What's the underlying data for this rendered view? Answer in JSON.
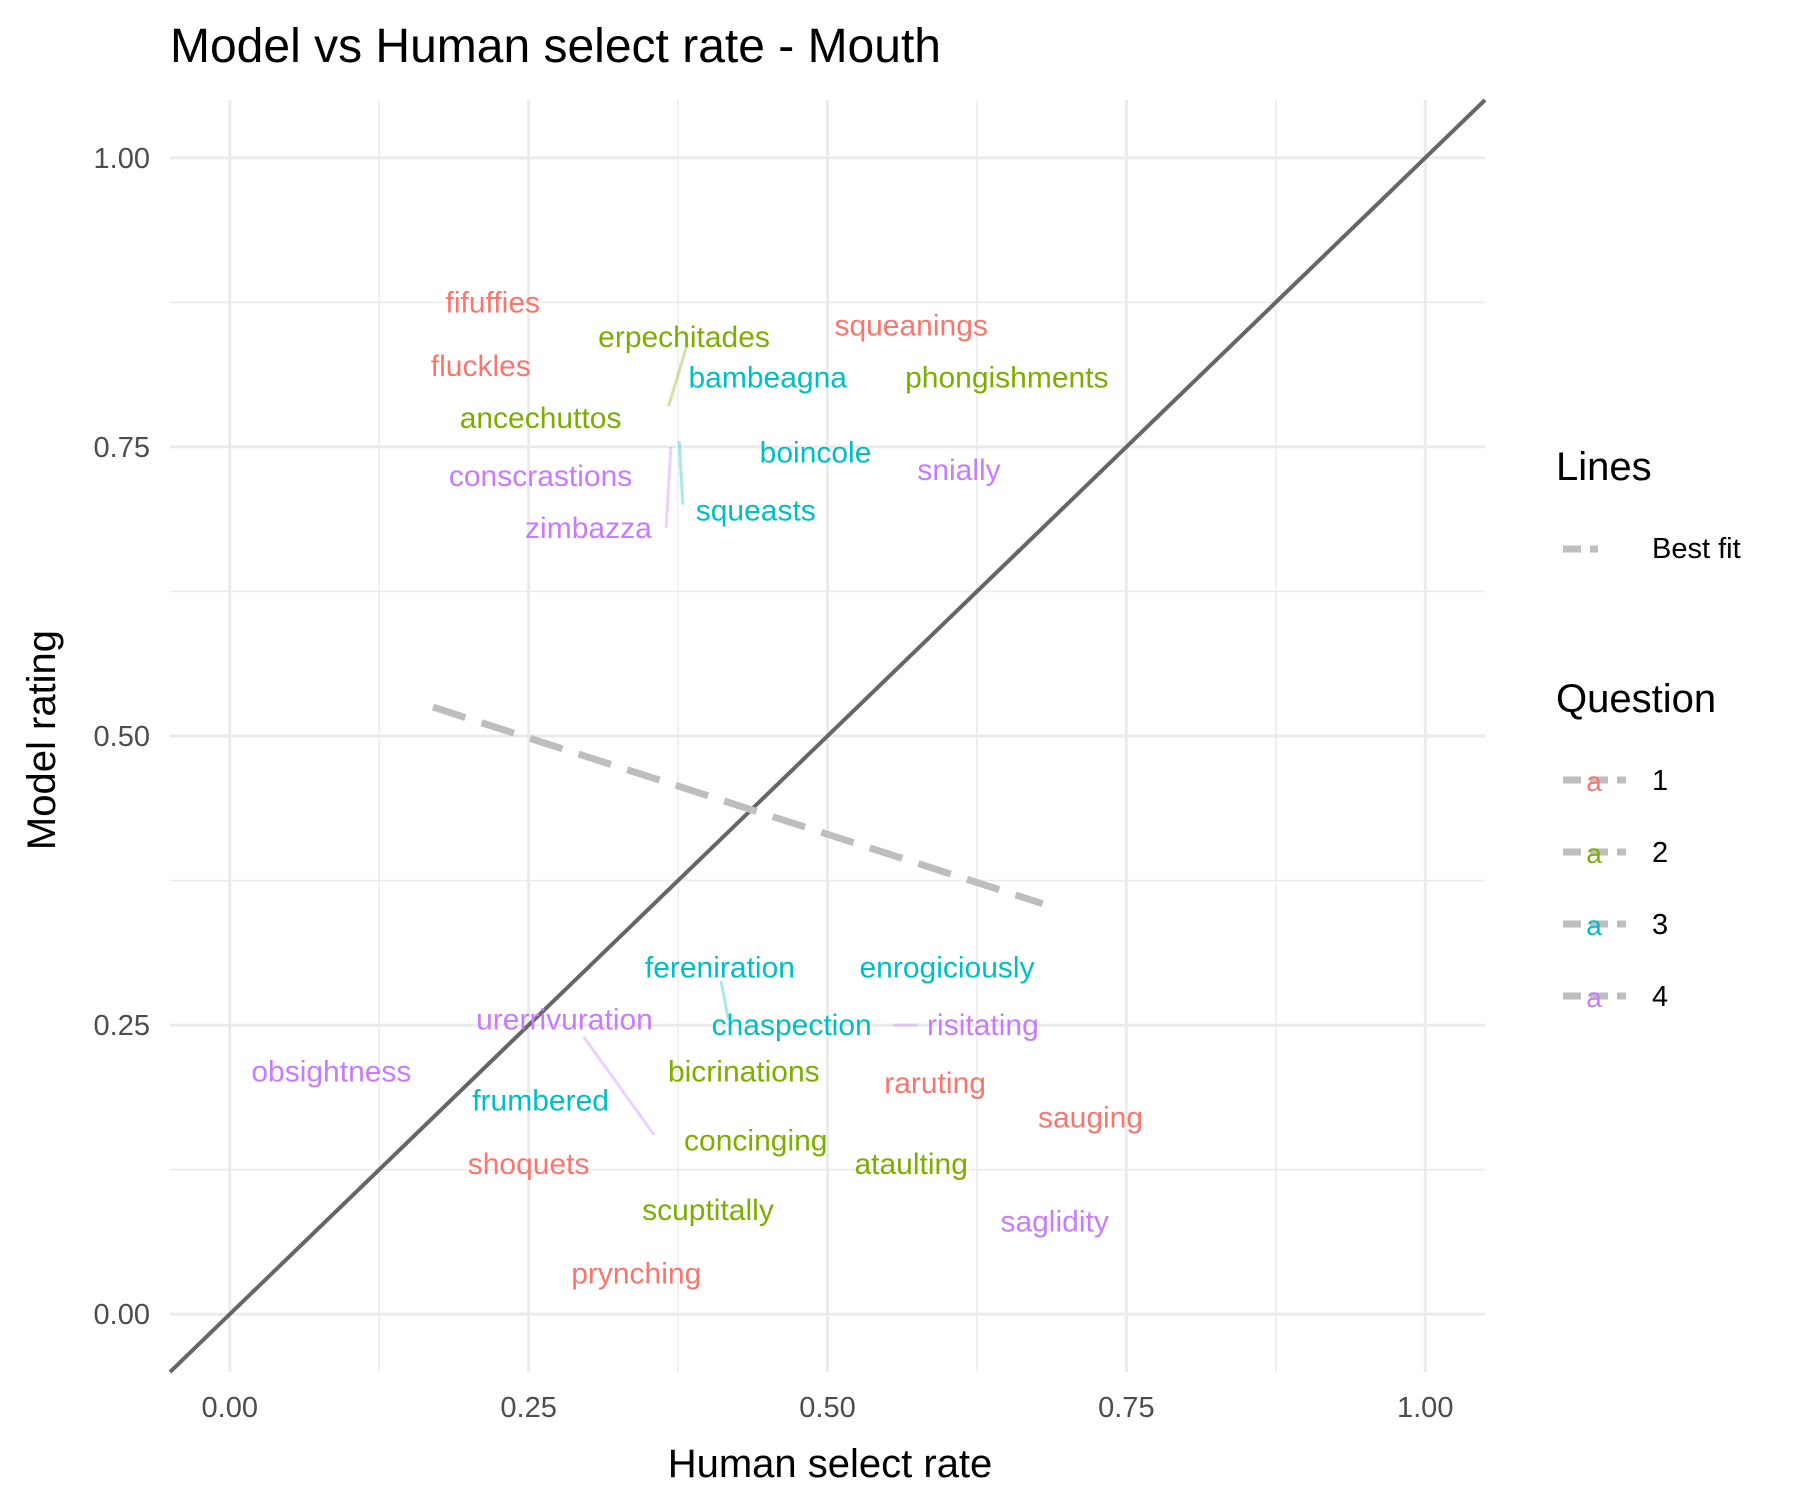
{
  "chart_data": {
    "type": "scatter",
    "title": "Model vs Human select rate - Mouth",
    "xlabel": "Human select rate",
    "ylabel": "Model rating",
    "xlim": [
      -0.05,
      1.05
    ],
    "ylim": [
      -0.05,
      1.05
    ],
    "x_ticks": [
      "0.00",
      "0.25",
      "0.50",
      "0.75",
      "1.00"
    ],
    "y_ticks": [
      "0.00",
      "0.25",
      "0.50",
      "0.75",
      "1.00"
    ],
    "grid": true,
    "reference_line": {
      "name": "y = x",
      "x": [
        -0.05,
        1.05
      ],
      "y": [
        -0.05,
        1.05
      ],
      "color": "#666666"
    },
    "best_fit": {
      "name": "Best fit",
      "x": [
        0.17,
        0.68
      ],
      "y": [
        0.525,
        0.355
      ],
      "color": "#bebebe"
    },
    "legend": {
      "lines_title": "Lines",
      "lines_entries": [
        {
          "label": "Best fit"
        }
      ],
      "question_title": "Question",
      "question_key_glyph": "a",
      "question_entries": [
        {
          "label": "1",
          "color": "#F8766D"
        },
        {
          "label": "2",
          "color": "#7CAE00"
        },
        {
          "label": "3",
          "color": "#00BFC4"
        },
        {
          "label": "4",
          "color": "#C77CFF"
        }
      ]
    },
    "series": [
      {
        "name": "1",
        "color": "#F8766D",
        "points": [
          {
            "label": "fifuffies",
            "x": 0.22,
            "y": 0.875
          },
          {
            "label": "squeanings",
            "x": 0.57,
            "y": 0.855
          },
          {
            "label": "fluckles",
            "x": 0.21,
            "y": 0.82
          },
          {
            "label": "raruting",
            "x": 0.59,
            "y": 0.2
          },
          {
            "label": "sauging",
            "x": 0.72,
            "y": 0.17
          },
          {
            "label": "shoquets",
            "x": 0.25,
            "y": 0.13
          },
          {
            "label": "prynching",
            "x": 0.34,
            "y": 0.035
          }
        ]
      },
      {
        "name": "2",
        "color": "#7CAE00",
        "points": [
          {
            "label": "erpechitades",
            "x": 0.38,
            "y": 0.845
          },
          {
            "label": "phongishments",
            "x": 0.65,
            "y": 0.81
          },
          {
            "label": "ancechuttos",
            "x": 0.26,
            "y": 0.775
          },
          {
            "label": "bicrinations",
            "x": 0.43,
            "y": 0.21
          },
          {
            "label": "concinging",
            "x": 0.44,
            "y": 0.15
          },
          {
            "label": "ataulting",
            "x": 0.57,
            "y": 0.13
          },
          {
            "label": "scuptitally",
            "x": 0.4,
            "y": 0.09
          }
        ]
      },
      {
        "name": "3",
        "color": "#00BFC4",
        "points": [
          {
            "label": "bambeagna",
            "x": 0.45,
            "y": 0.81
          },
          {
            "label": "boincole",
            "x": 0.49,
            "y": 0.745
          },
          {
            "label": "squeasts",
            "x": 0.44,
            "y": 0.695
          },
          {
            "label": "fereniration",
            "x": 0.41,
            "y": 0.3
          },
          {
            "label": "enrogiciously",
            "x": 0.6,
            "y": 0.3
          },
          {
            "label": "chaspection",
            "x": 0.47,
            "y": 0.25
          },
          {
            "label": "frumbered",
            "x": 0.26,
            "y": 0.185
          }
        ]
      },
      {
        "name": "4",
        "color": "#C77CFF",
        "points": [
          {
            "label": "snially",
            "x": 0.61,
            "y": 0.73
          },
          {
            "label": "conscrastions",
            "x": 0.26,
            "y": 0.725
          },
          {
            "label": "zimbazza",
            "x": 0.3,
            "y": 0.68
          },
          {
            "label": "urerrivuration",
            "x": 0.28,
            "y": 0.255
          },
          {
            "label": "risitating",
            "x": 0.63,
            "y": 0.25
          },
          {
            "label": "obsightness",
            "x": 0.085,
            "y": 0.21
          },
          {
            "label": "saglidity",
            "x": 0.69,
            "y": 0.08
          }
        ]
      }
    ],
    "connectors": [
      {
        "series": "2",
        "x": [
          0.383,
          0.367
        ],
        "y": [
          0.84,
          0.785
        ]
      },
      {
        "series": "3",
        "x": [
          0.376,
          0.379
        ],
        "y": [
          0.755,
          0.7
        ]
      },
      {
        "series": "4",
        "x": [
          0.369,
          0.365
        ],
        "y": [
          0.75,
          0.68
        ]
      },
      {
        "series": "3",
        "x": [
          0.411,
          0.417
        ],
        "y": [
          0.288,
          0.255
        ]
      },
      {
        "series": "4",
        "x": [
          0.296,
          0.355
        ],
        "y": [
          0.24,
          0.155
        ]
      },
      {
        "series": "4",
        "x": [
          0.555,
          0.575
        ],
        "y": [
          0.25,
          0.25
        ]
      }
    ]
  }
}
